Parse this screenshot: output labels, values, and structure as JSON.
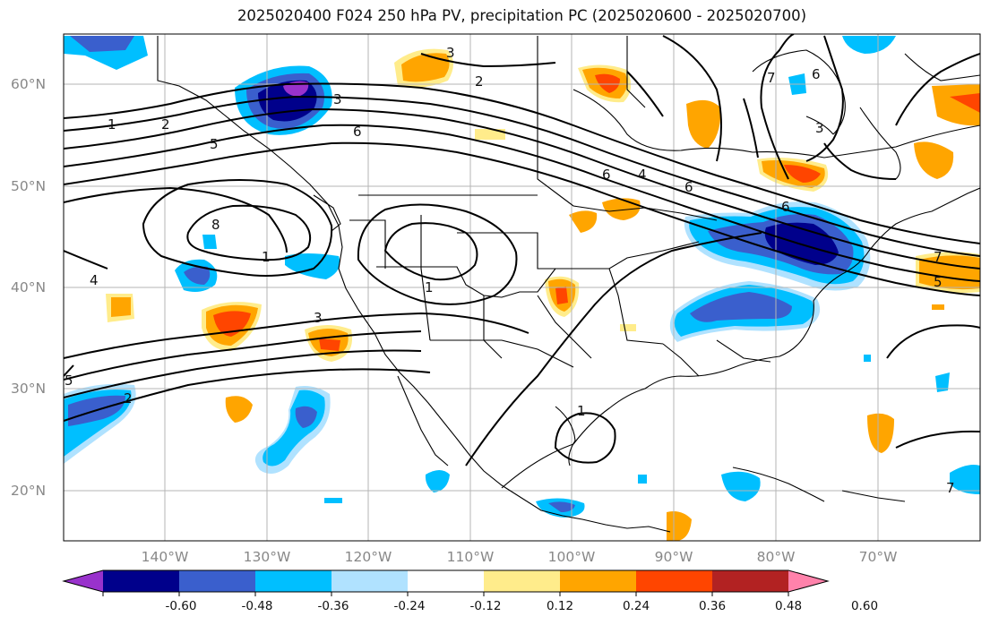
{
  "title": "2025020400 F024 250 hPa PV, precipitation PC (2025020600 - 2025020700)",
  "lat_labels": [
    "60°N",
    "50°N",
    "40°N",
    "30°N",
    "20°N"
  ],
  "lon_labels": [
    "140°W",
    "130°W",
    "120°W",
    "110°W",
    "100°W",
    "90°W",
    "80°W",
    "70°W"
  ],
  "colorbar": {
    "ticks": [
      "-0.60",
      "-0.48",
      "-0.36",
      "-0.24",
      "-0.12",
      "0.12",
      "0.24",
      "0.36",
      "0.48",
      "0.60"
    ],
    "colors": [
      "#9932cc",
      "#00008b",
      "#3a5fcd",
      "#00bfff",
      "#b0e2ff",
      "#ffffff",
      "#ffec8b",
      "#ffa500",
      "#ff4500",
      "#b22222",
      "#ff82ab"
    ]
  },
  "pv_contour_labels": [
    "1",
    "2",
    "3",
    "4",
    "5",
    "6",
    "7",
    "8"
  ],
  "map_extent": {
    "lon": [
      -150,
      -60
    ],
    "lat": [
      15,
      65
    ]
  }
}
